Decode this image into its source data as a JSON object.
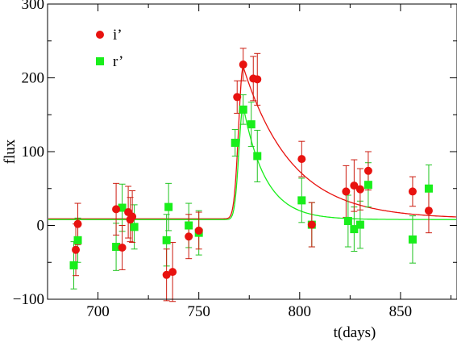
{
  "chart_data": {
    "type": "scatter",
    "xlabel": "t(days)",
    "ylabel": "flux",
    "xlim": [
      675,
      878
    ],
    "ylim": [
      -100,
      300
    ],
    "x_ticks": [
      700,
      750,
      800,
      850
    ],
    "y_ticks": [
      -100,
      0,
      100,
      200,
      300
    ],
    "x_tick_labels": [
      "700",
      "750",
      "800",
      "850"
    ],
    "y_tick_labels": [
      "−100",
      "0",
      "100",
      "200",
      "300"
    ],
    "grid": false,
    "legend_position": "top-left",
    "series": [
      {
        "name": "i’",
        "color": "#e8120f",
        "marker": "circle",
        "points": [
          {
            "x": 689,
            "y": -33,
            "err": 35
          },
          {
            "x": 690,
            "y": 2,
            "err": 28
          },
          {
            "x": 709,
            "y": 22,
            "err": 35
          },
          {
            "x": 712,
            "y": -30,
            "err": 30
          },
          {
            "x": 715,
            "y": 18,
            "err": 35
          },
          {
            "x": 716,
            "y": 8,
            "err": 30
          },
          {
            "x": 717,
            "y": 12,
            "err": 35
          },
          {
            "x": 734,
            "y": -67,
            "err": 35
          },
          {
            "x": 737,
            "y": -63,
            "err": 40
          },
          {
            "x": 745,
            "y": -15,
            "err": 30
          },
          {
            "x": 750,
            "y": -7,
            "err": 25
          },
          {
            "x": 769,
            "y": 174,
            "err": 22
          },
          {
            "x": 772,
            "y": 218,
            "err": 22
          },
          {
            "x": 777,
            "y": 199,
            "err": 30
          },
          {
            "x": 779,
            "y": 198,
            "err": 35
          },
          {
            "x": 801,
            "y": 90,
            "err": 24
          },
          {
            "x": 806,
            "y": 1,
            "err": 30
          },
          {
            "x": 823,
            "y": 46,
            "err": 35
          },
          {
            "x": 827,
            "y": 54,
            "err": 35
          },
          {
            "x": 830,
            "y": 49,
            "err": 28
          },
          {
            "x": 834,
            "y": 74,
            "err": 26
          },
          {
            "x": 856,
            "y": 46,
            "err": 20
          },
          {
            "x": 864,
            "y": 20,
            "err": 30
          }
        ]
      },
      {
        "name": "r’",
        "color": "#19ee1b",
        "marker": "square",
        "points": [
          {
            "x": 688,
            "y": -54,
            "err": 32
          },
          {
            "x": 690,
            "y": -20,
            "err": 30
          },
          {
            "x": 709,
            "y": -29,
            "err": 32
          },
          {
            "x": 712,
            "y": 24,
            "err": 32
          },
          {
            "x": 718,
            "y": -2,
            "err": 30
          },
          {
            "x": 734,
            "y": -20,
            "err": 35
          },
          {
            "x": 735,
            "y": 25,
            "err": 32
          },
          {
            "x": 745,
            "y": 0,
            "err": 30
          },
          {
            "x": 750,
            "y": -10,
            "err": 30
          },
          {
            "x": 768,
            "y": 112,
            "err": 18
          },
          {
            "x": 772,
            "y": 157,
            "err": 20
          },
          {
            "x": 776,
            "y": 137,
            "err": 30
          },
          {
            "x": 779,
            "y": 94,
            "err": 35
          },
          {
            "x": 801,
            "y": 34,
            "err": 30
          },
          {
            "x": 806,
            "y": 1,
            "err": 30
          },
          {
            "x": 824,
            "y": 6,
            "err": 35
          },
          {
            "x": 827,
            "y": -5,
            "err": 30
          },
          {
            "x": 830,
            "y": 1,
            "err": 32
          },
          {
            "x": 834,
            "y": 55,
            "err": 30
          },
          {
            "x": 856,
            "y": -19,
            "err": 32
          },
          {
            "x": 864,
            "y": 50,
            "err": 32
          }
        ]
      }
    ]
  }
}
